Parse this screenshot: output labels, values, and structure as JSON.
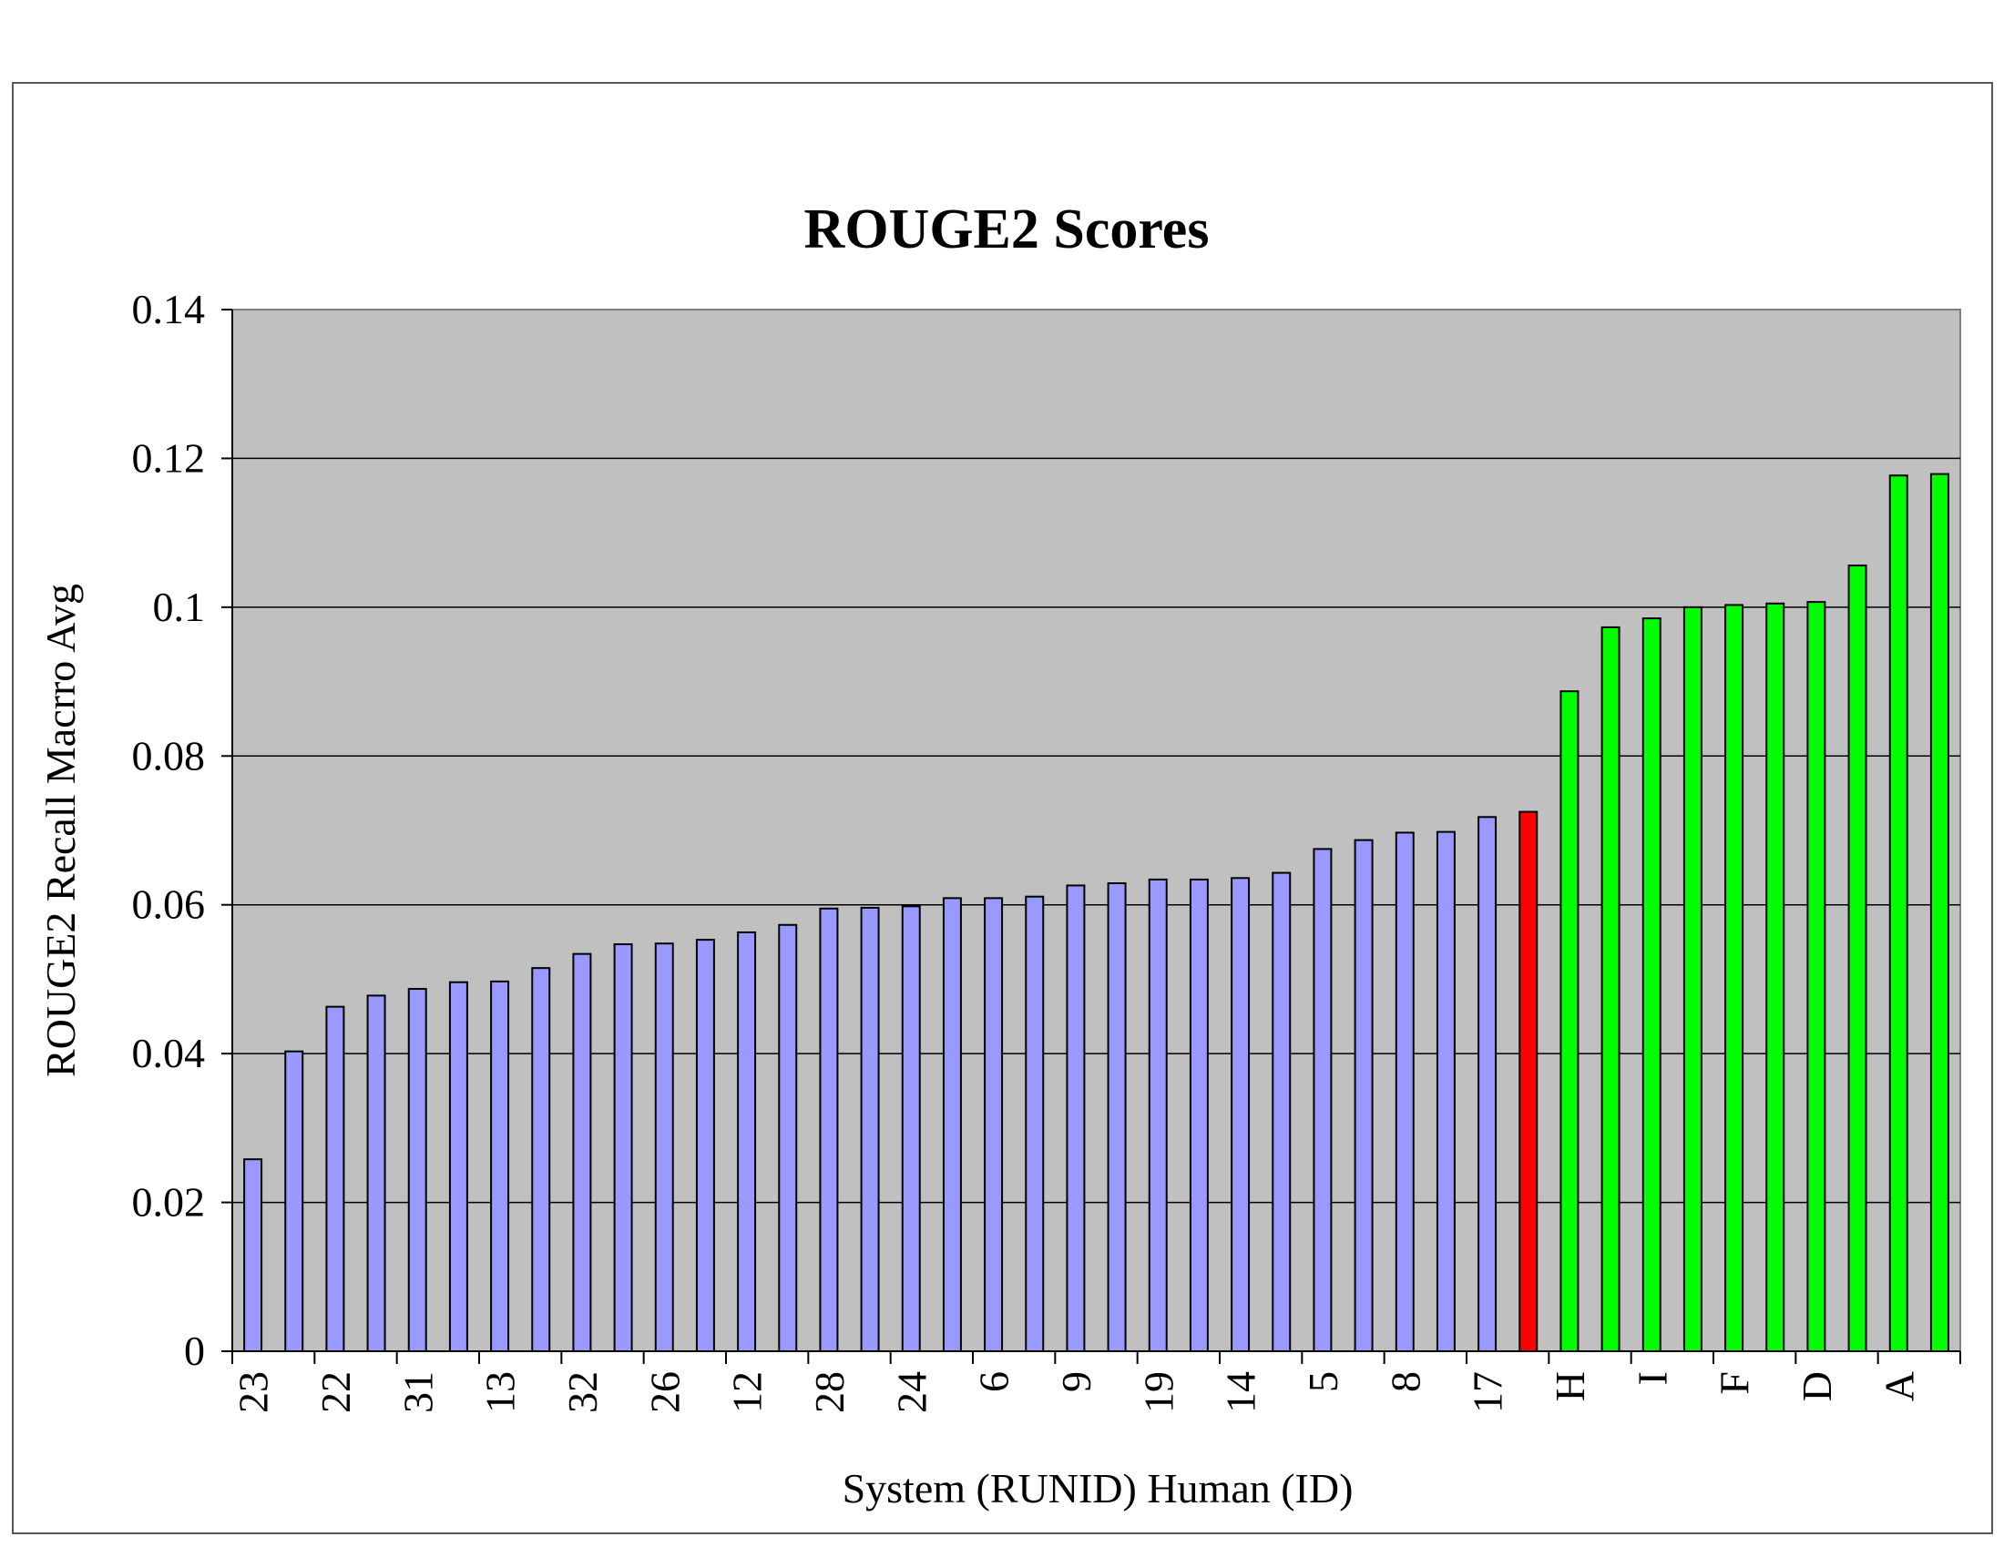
{
  "colors": {
    "plot_background": "#c0c0c0",
    "system_bar": "#9999ff",
    "baseline_bar": "#ff0000",
    "human_bar": "#00ff00",
    "bar_outline": "#000000",
    "gridline": "#000000"
  },
  "chart_data": {
    "type": "bar",
    "title": "ROUGE2 Scores",
    "xlabel": "System (RUNID) Human (ID)",
    "ylabel": "ROUGE2 Recall Macrro Avg",
    "ylim": [
      0,
      0.14
    ],
    "yticks": [
      "0",
      "0.02",
      "0.04",
      "0.06",
      "0.08",
      "0.1",
      "0.12",
      "0.14"
    ],
    "grid": true,
    "legend": "none",
    "categories": [
      "23",
      "",
      "22",
      "",
      "31",
      "",
      "13",
      "",
      "32",
      "",
      "26",
      "",
      "12",
      "",
      "28",
      "",
      "24",
      "",
      "6",
      "",
      "9",
      "",
      "19",
      "",
      "14",
      "",
      "5",
      "",
      "8",
      "",
      "17",
      "",
      "H",
      "",
      "I",
      "",
      "F",
      "",
      "D",
      "",
      "A",
      ""
    ],
    "values": [
      0.0258,
      0.0403,
      0.0463,
      0.0478,
      0.0487,
      0.0496,
      0.0497,
      0.0515,
      0.0534,
      0.0547,
      0.0548,
      0.0553,
      0.0563,
      0.0573,
      0.0595,
      0.0596,
      0.0598,
      0.0609,
      0.0609,
      0.0611,
      0.0626,
      0.0629,
      0.0634,
      0.0634,
      0.0636,
      0.0643,
      0.0675,
      0.0687,
      0.0697,
      0.0698,
      0.0718,
      0.0725,
      0.0887,
      0.0973,
      0.0985,
      0.1,
      0.1003,
      0.1005,
      0.1007,
      0.1056,
      0.1177,
      0.1179
    ],
    "groups": [
      "system",
      "system",
      "system",
      "system",
      "system",
      "system",
      "system",
      "system",
      "system",
      "system",
      "system",
      "system",
      "system",
      "system",
      "system",
      "system",
      "system",
      "system",
      "system",
      "system",
      "system",
      "system",
      "system",
      "system",
      "system",
      "system",
      "system",
      "system",
      "system",
      "system",
      "system",
      "baseline",
      "human",
      "human",
      "human",
      "human",
      "human",
      "human",
      "human",
      "human",
      "human",
      "human"
    ]
  }
}
